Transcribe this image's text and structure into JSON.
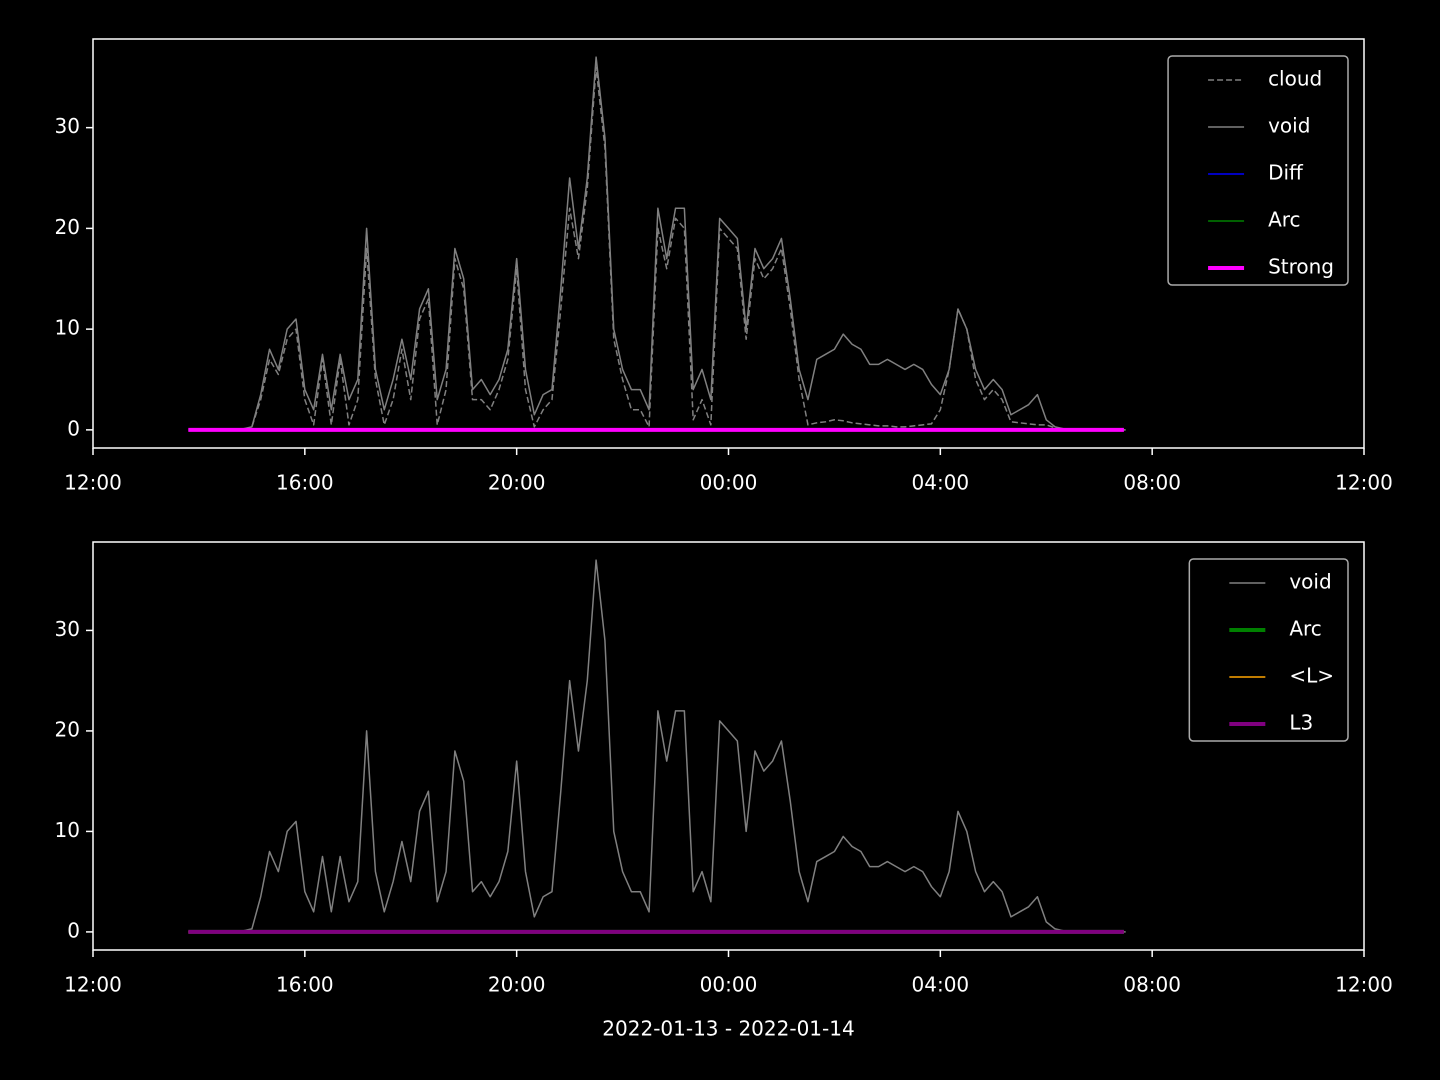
{
  "chart_data": [
    {
      "type": "line",
      "x": [
        "13:50",
        "14:00",
        "14:10",
        "14:20",
        "14:30",
        "14:40",
        "14:50",
        "15:00",
        "15:10",
        "15:20",
        "15:30",
        "15:40",
        "15:50",
        "16:00",
        "16:10",
        "16:20",
        "16:30",
        "16:40",
        "16:50",
        "17:00",
        "17:10",
        "17:20",
        "17:30",
        "17:40",
        "17:50",
        "18:00",
        "18:10",
        "18:20",
        "18:30",
        "18:40",
        "18:50",
        "19:00",
        "19:10",
        "19:20",
        "19:30",
        "19:40",
        "19:50",
        "20:00",
        "20:10",
        "20:20",
        "20:30",
        "20:40",
        "20:50",
        "21:00",
        "21:10",
        "21:20",
        "21:30",
        "21:40",
        "21:50",
        "22:00",
        "22:10",
        "22:20",
        "22:30",
        "22:40",
        "22:50",
        "23:00",
        "23:10",
        "23:20",
        "23:30",
        "23:40",
        "23:50",
        "00:00",
        "00:10",
        "00:20",
        "00:30",
        "00:40",
        "00:50",
        "01:00",
        "01:10",
        "01:20",
        "01:30",
        "01:40",
        "01:50",
        "02:00",
        "02:10",
        "02:20",
        "02:30",
        "02:40",
        "02:50",
        "03:00",
        "03:10",
        "03:20",
        "03:30",
        "03:40",
        "03:50",
        "04:00",
        "04:10",
        "04:20",
        "04:30",
        "04:40",
        "04:50",
        "05:00",
        "05:10",
        "05:20",
        "05:30",
        "05:40",
        "05:50",
        "06:00",
        "06:10",
        "06:20",
        "06:30",
        "06:40",
        "06:50",
        "07:00",
        "07:10",
        "07:20",
        "07:30"
      ],
      "series": [
        {
          "name": "cloud",
          "color": "#808080",
          "dash": true,
          "width": 1.5,
          "values": [
            0,
            0,
            0,
            0,
            0,
            0,
            0,
            0.3,
            3,
            7,
            5.5,
            9,
            10,
            3,
            0.5,
            7,
            0.5,
            7,
            0.5,
            3,
            18,
            5,
            0.5,
            3,
            8,
            3,
            11,
            13,
            0.5,
            4,
            17,
            14,
            3,
            3,
            2,
            4,
            7,
            16,
            4,
            0.3,
            2,
            3,
            12,
            22,
            17,
            24,
            36,
            28,
            9,
            5,
            2,
            2,
            0.3,
            20,
            16,
            21,
            20,
            1,
            3,
            0.5,
            20,
            19,
            18,
            9,
            17,
            15,
            16,
            18,
            12,
            5,
            0.5,
            0.7,
            0.8,
            1,
            0.9,
            0.7,
            0.6,
            0.5,
            0.4,
            0.4,
            0.3,
            0.3,
            0.4,
            0.5,
            0.6,
            2,
            6,
            12,
            10,
            5,
            3,
            4,
            3,
            0.8,
            0.7,
            0.6,
            0.5,
            0.5,
            0.2,
            0.1,
            0,
            0,
            0,
            0,
            0,
            0,
            0
          ]
        },
        {
          "name": "void",
          "color": "#808080",
          "width": 1.5,
          "values": [
            0,
            0,
            0,
            0,
            0,
            0,
            0.1,
            0.3,
            3.5,
            8,
            6,
            10,
            11,
            4,
            2,
            7.5,
            2,
            7.5,
            3,
            5,
            20,
            6,
            2,
            5,
            9,
            5,
            12,
            14,
            3,
            6,
            18,
            15,
            4,
            5,
            3.5,
            5,
            8,
            17,
            6,
            1.5,
            3.5,
            4,
            14,
            25,
            18,
            25,
            37,
            29,
            10,
            6,
            4,
            4,
            2,
            22,
            17,
            22,
            22,
            4,
            6,
            3,
            21,
            20,
            19,
            10,
            18,
            16,
            17,
            19,
            13,
            6,
            3,
            7,
            7.5,
            8,
            9.5,
            8.5,
            8,
            6.5,
            6.5,
            7,
            6.5,
            6,
            6.5,
            6,
            4.5,
            3.5,
            6,
            12,
            10,
            6,
            4,
            5,
            4,
            1.5,
            2,
            2.5,
            3.5,
            1,
            0.3,
            0.1,
            0,
            0,
            0,
            0,
            0,
            0,
            0
          ]
        },
        {
          "name": "Diff",
          "color": "#0000ff",
          "width": 1.5,
          "x": [
            "13:48",
            "07:28"
          ],
          "values": [
            0,
            0
          ]
        },
        {
          "name": "Arc",
          "color": "#008000",
          "width": 1.5,
          "x": [
            "13:48",
            "07:28"
          ],
          "values": [
            0,
            0
          ]
        },
        {
          "name": "Strong",
          "color": "#ff00ff",
          "width": 4,
          "x": [
            "13:48",
            "07:28"
          ],
          "values": [
            0,
            0
          ]
        }
      ],
      "xlim": [
        "12:00",
        "12:00"
      ],
      "xticks": [
        "12:00",
        "16:00",
        "20:00",
        "00:00",
        "04:00",
        "08:00",
        "12:00"
      ],
      "ylim": [
        -1.8,
        38.8
      ],
      "yticks": [
        0,
        10,
        20,
        30
      ],
      "legend": "upper right"
    },
    {
      "type": "line",
      "x": [
        "13:50",
        "14:00",
        "14:10",
        "14:20",
        "14:30",
        "14:40",
        "14:50",
        "15:00",
        "15:10",
        "15:20",
        "15:30",
        "15:40",
        "15:50",
        "16:00",
        "16:10",
        "16:20",
        "16:30",
        "16:40",
        "16:50",
        "17:00",
        "17:10",
        "17:20",
        "17:30",
        "17:40",
        "17:50",
        "18:00",
        "18:10",
        "18:20",
        "18:30",
        "18:40",
        "18:50",
        "19:00",
        "19:10",
        "19:20",
        "19:30",
        "19:40",
        "19:50",
        "20:00",
        "20:10",
        "20:20",
        "20:30",
        "20:40",
        "20:50",
        "21:00",
        "21:10",
        "21:20",
        "21:30",
        "21:40",
        "21:50",
        "22:00",
        "22:10",
        "22:20",
        "22:30",
        "22:40",
        "22:50",
        "23:00",
        "23:10",
        "23:20",
        "23:30",
        "23:40",
        "23:50",
        "00:00",
        "00:10",
        "00:20",
        "00:30",
        "00:40",
        "00:50",
        "01:00",
        "01:10",
        "01:20",
        "01:30",
        "01:40",
        "01:50",
        "02:00",
        "02:10",
        "02:20",
        "02:30",
        "02:40",
        "02:50",
        "03:00",
        "03:10",
        "03:20",
        "03:30",
        "03:40",
        "03:50",
        "04:00",
        "04:10",
        "04:20",
        "04:30",
        "04:40",
        "04:50",
        "05:00",
        "05:10",
        "05:20",
        "05:30",
        "05:40",
        "05:50",
        "06:00",
        "06:10",
        "06:20",
        "06:30",
        "06:40",
        "06:50",
        "07:00",
        "07:10",
        "07:20",
        "07:30"
      ],
      "series": [
        {
          "name": "void",
          "color": "#808080",
          "width": 1.5,
          "values": [
            0,
            0,
            0,
            0,
            0,
            0,
            0.1,
            0.3,
            3.5,
            8,
            6,
            10,
            11,
            4,
            2,
            7.5,
            2,
            7.5,
            3,
            5,
            20,
            6,
            2,
            5,
            9,
            5,
            12,
            14,
            3,
            6,
            18,
            15,
            4,
            5,
            3.5,
            5,
            8,
            17,
            6,
            1.5,
            3.5,
            4,
            14,
            25,
            18,
            25,
            37,
            29,
            10,
            6,
            4,
            4,
            2,
            22,
            17,
            22,
            22,
            4,
            6,
            3,
            21,
            20,
            19,
            10,
            18,
            16,
            17,
            19,
            13,
            6,
            3,
            7,
            7.5,
            8,
            9.5,
            8.5,
            8,
            6.5,
            6.5,
            7,
            6.5,
            6,
            6.5,
            6,
            4.5,
            3.5,
            6,
            12,
            10,
            6,
            4,
            5,
            4,
            1.5,
            2,
            2.5,
            3.5,
            1,
            0.3,
            0.1,
            0,
            0,
            0,
            0,
            0,
            0,
            0
          ]
        },
        {
          "name": "Arc",
          "color": "#008000",
          "width": 4,
          "x": [
            "13:48",
            "07:28"
          ],
          "values": [
            0,
            0
          ]
        },
        {
          "name": "<L>",
          "color": "#ffa500",
          "width": 1.5,
          "x": [
            "13:48",
            "07:28"
          ],
          "values": [
            0,
            0
          ]
        },
        {
          "name": "L3",
          "color": "#800080",
          "width": 4,
          "x": [
            "13:48",
            "07:28"
          ],
          "values": [
            0,
            0
          ]
        }
      ],
      "xlim": [
        "12:00",
        "12:00"
      ],
      "xticks": [
        "12:00",
        "16:00",
        "20:00",
        "00:00",
        "04:00",
        "08:00",
        "12:00"
      ],
      "ylim": [
        -1.8,
        38.8
      ],
      "yticks": [
        0,
        10,
        20,
        30
      ],
      "legend": "upper right",
      "xlabel": "2022-01-13 - 2022-01-14"
    }
  ]
}
